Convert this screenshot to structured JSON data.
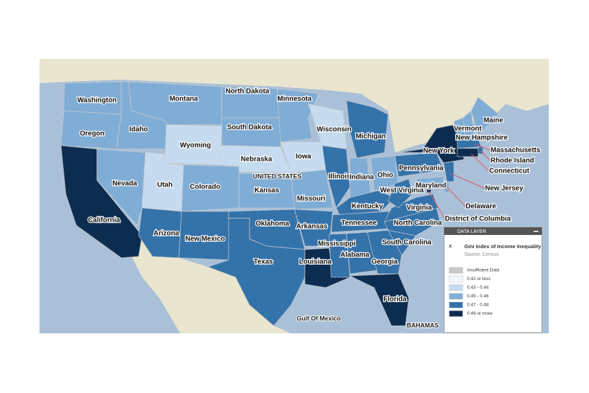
{
  "map": {
    "places": [
      "UNITED STATES",
      "Gulf Of Mexico",
      "BAHAMAS"
    ],
    "states": [
      {
        "name": "Washington",
        "category": "0.45 - 0.46"
      },
      {
        "name": "Oregon",
        "category": "0.45 - 0.46"
      },
      {
        "name": "California",
        "category": "0.49 or more"
      },
      {
        "name": "Nevada",
        "category": "0.45 - 0.46"
      },
      {
        "name": "Idaho",
        "category": "0.45 - 0.46"
      },
      {
        "name": "Montana",
        "category": "0.45 - 0.46"
      },
      {
        "name": "Wyoming",
        "category": "0.43 - 0.44"
      },
      {
        "name": "Utah",
        "category": "0.43 - 0.44"
      },
      {
        "name": "Colorado",
        "category": "0.45 - 0.46"
      },
      {
        "name": "Arizona",
        "category": "0.47 - 0.48"
      },
      {
        "name": "New Mexico",
        "category": "0.47 - 0.48"
      },
      {
        "name": "North Dakota",
        "category": "0.45 - 0.46"
      },
      {
        "name": "South Dakota",
        "category": "0.45 - 0.46"
      },
      {
        "name": "Nebraska",
        "category": "0.43 - 0.44"
      },
      {
        "name": "Kansas",
        "category": "0.45 - 0.46"
      },
      {
        "name": "Oklahoma",
        "category": "0.47 - 0.48"
      },
      {
        "name": "Texas",
        "category": "0.47 - 0.48"
      },
      {
        "name": "Minnesota",
        "category": "0.45 - 0.46"
      },
      {
        "name": "Iowa",
        "category": "0.43 - 0.44"
      },
      {
        "name": "Missouri",
        "category": "0.45 - 0.46"
      },
      {
        "name": "Arkansas",
        "category": "0.47 - 0.48"
      },
      {
        "name": "Louisiana",
        "category": "0.49 or more"
      },
      {
        "name": "Wisconsin",
        "category": "0.43 - 0.44"
      },
      {
        "name": "Illinois",
        "category": "0.47 - 0.48"
      },
      {
        "name": "Michigan",
        "category": "0.47 - 0.48"
      },
      {
        "name": "Indiana",
        "category": "0.45 - 0.46"
      },
      {
        "name": "Ohio",
        "category": "0.45 - 0.46"
      },
      {
        "name": "Kentucky",
        "category": "0.47 - 0.48"
      },
      {
        "name": "Tennessee",
        "category": "0.47 - 0.48"
      },
      {
        "name": "Mississippi",
        "category": "0.47 - 0.48"
      },
      {
        "name": "Alabama",
        "category": "0.47 - 0.48"
      },
      {
        "name": "Georgia",
        "category": "0.47 - 0.48"
      },
      {
        "name": "Florida",
        "category": "0.49 or more"
      },
      {
        "name": "South Carolina",
        "category": "0.47 - 0.48"
      },
      {
        "name": "North Carolina",
        "category": "0.47 - 0.48"
      },
      {
        "name": "Virginia",
        "category": "0.47 - 0.48"
      },
      {
        "name": "West Virginia",
        "category": "0.47 - 0.48"
      },
      {
        "name": "Pennsylvania",
        "category": "0.47 - 0.48"
      },
      {
        "name": "New York",
        "category": "0.49 or more"
      },
      {
        "name": "Vermont",
        "category": "0.45 - 0.46"
      },
      {
        "name": "New Hampshire",
        "category": "0.45 - 0.46"
      },
      {
        "name": "Maine",
        "category": "0.45 - 0.46"
      },
      {
        "name": "Massachusetts",
        "category": "0.47 - 0.48"
      },
      {
        "name": "Rhode Island",
        "category": "0.47 - 0.48"
      },
      {
        "name": "Connecticut",
        "category": "0.49 or more"
      },
      {
        "name": "New Jersey",
        "category": "0.47 - 0.48"
      },
      {
        "name": "Maryland",
        "category": "0.45 - 0.46"
      },
      {
        "name": "Delaware",
        "category": "0.45 - 0.46"
      },
      {
        "name": "District of Columbia",
        "category": "0.49 or more"
      }
    ]
  },
  "panel": {
    "header": "DATA LAYER",
    "title": "Gini Index of Income Inequality",
    "source": "Source: Census",
    "legend": [
      {
        "label": "Insufficient Data",
        "color": "#c8c8c8"
      },
      {
        "label": "0.42 or less",
        "color": "#eef4fa"
      },
      {
        "label": "0.43 - 0.44",
        "color": "#c6dbef"
      },
      {
        "label": "0.45 - 0.46",
        "color": "#7fadd6"
      },
      {
        "label": "0.47 - 0.48",
        "color": "#3472aa"
      },
      {
        "label": "0.49 or more",
        "color": "#0c2d50"
      }
    ]
  }
}
